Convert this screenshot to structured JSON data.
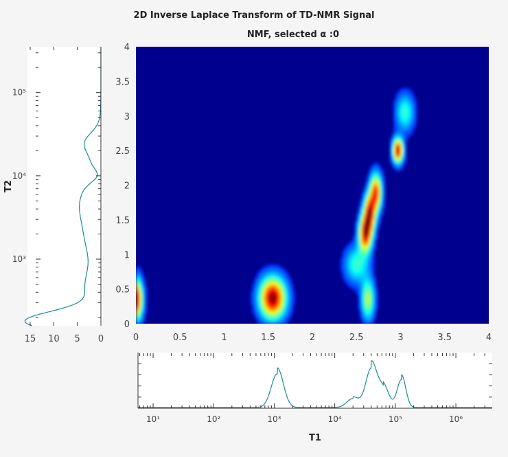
{
  "figure": {
    "title": "2D Inverse Laplace Transform of TD-NMR Signal",
    "subtitle": "NMF, selected α :0"
  },
  "chart_data": [
    {
      "type": "heatmap",
      "name": "main_map",
      "xlim": [
        0,
        4
      ],
      "ylim": [
        0,
        4
      ],
      "x_ticks": [
        "0",
        "0.5",
        "1",
        "1.5",
        "2",
        "2.5",
        "3",
        "3.5",
        "4"
      ],
      "y_ticks": [
        "0",
        "0.5",
        "1",
        "1.5",
        "2",
        "2.5",
        "3",
        "3.5",
        "4"
      ],
      "colormap": "jet",
      "background": "#00008f",
      "peaks": [
        {
          "x": 1.55,
          "y": 0.37,
          "sx": 0.1,
          "sy": 0.2,
          "amp": 1.0
        },
        {
          "x": 0.0,
          "y": 0.35,
          "sx": 0.05,
          "sy": 0.2,
          "amp": 0.95
        },
        {
          "x": 2.6,
          "y": 1.3,
          "sx": 0.05,
          "sy": 0.18,
          "amp": 0.9
        },
        {
          "x": 2.65,
          "y": 1.6,
          "sx": 0.045,
          "sy": 0.18,
          "amp": 0.85
        },
        {
          "x": 2.72,
          "y": 1.9,
          "sx": 0.045,
          "sy": 0.18,
          "amp": 0.8
        },
        {
          "x": 2.97,
          "y": 2.5,
          "sx": 0.04,
          "sy": 0.12,
          "amp": 0.95
        },
        {
          "x": 3.05,
          "y": 3.05,
          "sx": 0.07,
          "sy": 0.18,
          "amp": 0.35
        },
        {
          "x": 2.5,
          "y": 0.85,
          "sx": 0.09,
          "sy": 0.18,
          "amp": 0.35
        },
        {
          "x": 2.63,
          "y": 0.35,
          "sx": 0.05,
          "sy": 0.2,
          "amp": 0.5
        }
      ]
    },
    {
      "type": "line",
      "name": "t2_marginal",
      "axis_label": "T2",
      "x_ticks": [
        "15",
        "10",
        "5",
        "0"
      ],
      "xlim": [
        0,
        16.5
      ],
      "y_log_ticks": [
        "10³",
        "10⁴",
        "10⁵"
      ],
      "ylim_log10": [
        2.2,
        5.55
      ],
      "x": [
        0,
        0.3,
        2.3,
        1.0,
        0.7,
        1.2,
        0.6,
        0.2
      ],
      "peaks": [
        {
          "log10_t2": 2.25,
          "width": 0.12,
          "height": 15.5
        },
        {
          "log10_t2": 2.65,
          "width": 0.22,
          "height": 3.2
        },
        {
          "log10_t2": 3.25,
          "width": 0.25,
          "height": 3.0
        },
        {
          "log10_t2": 3.65,
          "width": 0.2,
          "height": 2.6
        },
        {
          "log10_t2": 4.0,
          "width": 0.08,
          "height": -2.0
        },
        {
          "log10_t2": 4.4,
          "width": 0.12,
          "height": 2.6
        },
        {
          "log10_t2": 4.0,
          "width": 0.3,
          "height": 2.2
        }
      ]
    },
    {
      "type": "line",
      "name": "t1_marginal",
      "axis_label": "T1",
      "x_log_ticks": [
        "10¹",
        "10²",
        "10³",
        "10⁴",
        "10⁵",
        "10⁶"
      ],
      "xlim_log10": [
        0.75,
        6.6
      ],
      "peaks": [
        {
          "log10_t1": 3.05,
          "width": 0.1,
          "height": 0.75
        },
        {
          "log10_t1": 4.3,
          "width": 0.1,
          "height": 0.2
        },
        {
          "log10_t1": 4.6,
          "width": 0.09,
          "height": 0.85
        },
        {
          "log10_t1": 4.8,
          "width": 0.09,
          "height": 0.42
        },
        {
          "log10_t1": 5.1,
          "width": 0.07,
          "height": 0.62
        }
      ]
    }
  ]
}
